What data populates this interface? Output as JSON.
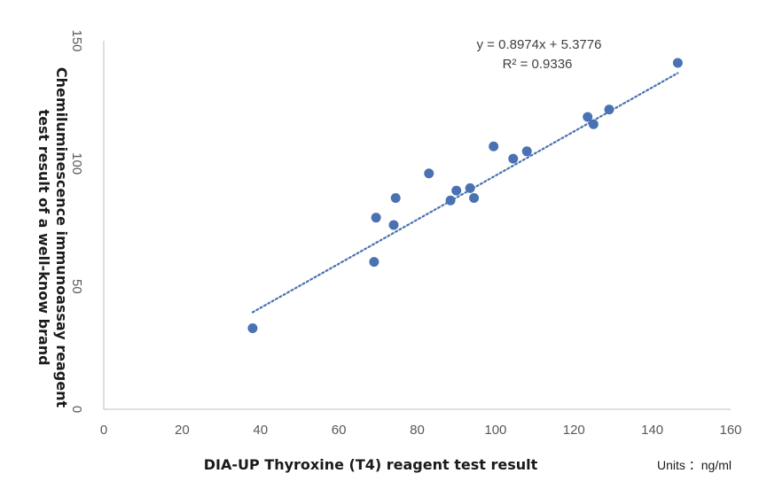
{
  "chart_data": {
    "type": "scatter",
    "xlabel": "DIA-UP Thyroxine (T4) reagent test result",
    "ylabel_lines": [
      "Chemiluminescence immunoassay reagent",
      "test result of a well-know brand"
    ],
    "units_label": "Units ：ng/ml",
    "xlim": [
      0,
      160
    ],
    "ylim": [
      0,
      150
    ],
    "x_ticks": [
      0,
      20,
      40,
      60,
      80,
      100,
      120,
      140,
      160
    ],
    "y_ticks": [
      0,
      50,
      100,
      150
    ],
    "grid": false,
    "series": [
      {
        "color": "#4a72b2",
        "points": [
          {
            "x": 38,
            "y": 33
          },
          {
            "x": 69,
            "y": 60
          },
          {
            "x": 69.5,
            "y": 78
          },
          {
            "x": 74,
            "y": 75
          },
          {
            "x": 74.5,
            "y": 86
          },
          {
            "x": 83,
            "y": 96
          },
          {
            "x": 88.5,
            "y": 85
          },
          {
            "x": 90,
            "y": 89
          },
          {
            "x": 93.5,
            "y": 90
          },
          {
            "x": 94.5,
            "y": 86
          },
          {
            "x": 99.5,
            "y": 107
          },
          {
            "x": 104.5,
            "y": 102
          },
          {
            "x": 108,
            "y": 105
          },
          {
            "x": 123.5,
            "y": 119
          },
          {
            "x": 125,
            "y": 116
          },
          {
            "x": 129,
            "y": 122
          },
          {
            "x": 146.5,
            "y": 141
          }
        ]
      }
    ],
    "trendline": {
      "type": "linear",
      "slope": 0.8974,
      "intercept": 5.3776,
      "x_range": [
        38,
        146.5
      ],
      "style": "dotted",
      "color": "#4a72b2"
    },
    "annotations": {
      "equation": "y = 0.8974x + 5.3776",
      "r_squared": "R² = 0.9336"
    }
  }
}
